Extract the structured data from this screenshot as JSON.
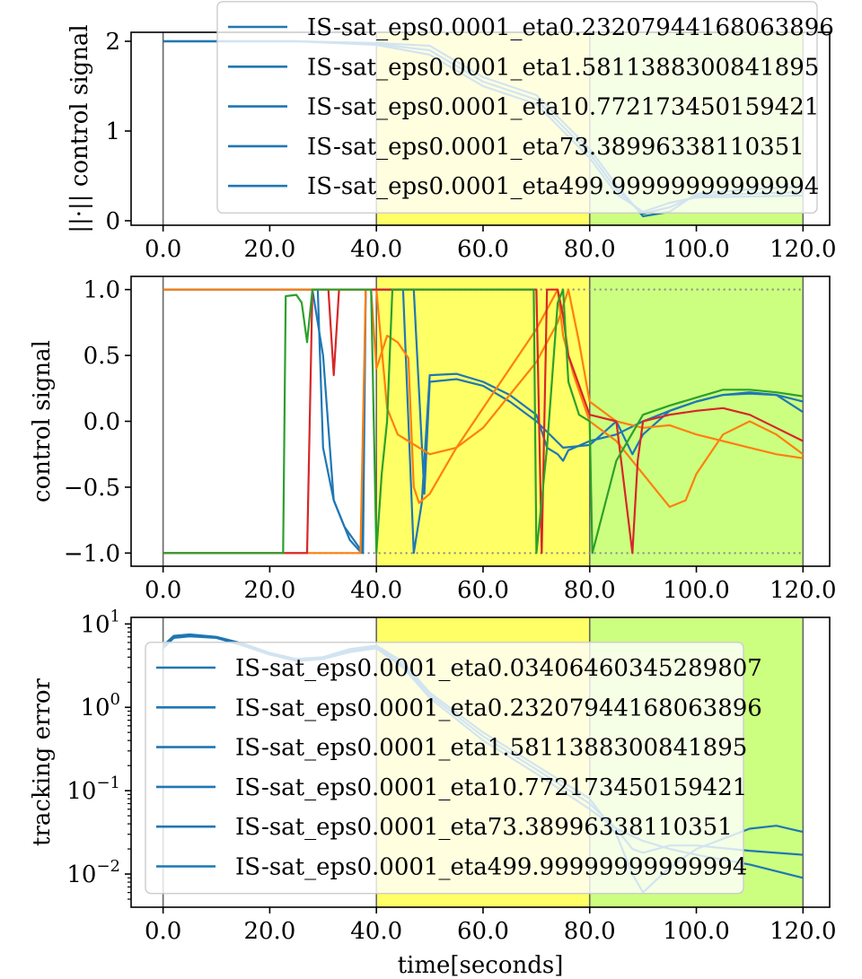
{
  "figure": {
    "xlabel": "time[seconds]",
    "colors": {
      "band1": "#ffff66",
      "band2": "#ccff80",
      "separator": "#666666",
      "blue": "#1f77b4",
      "orange": "#ff7f0e",
      "green": "#2ca02c",
      "red": "#d62728",
      "limit": "#888888"
    },
    "bands": [
      {
        "from": 40,
        "to": 80,
        "color": "#ffff66"
      },
      {
        "from": 80,
        "to": 120,
        "color": "#ccff80"
      }
    ],
    "separators": [
      0,
      40,
      80,
      120
    ]
  },
  "chart_data": [
    {
      "id": "norm",
      "type": "line",
      "ylabel": "||·|| control signal",
      "xlim": [
        -6,
        125
      ],
      "ylim": [
        -0.05,
        2.1
      ],
      "xticks": [
        0,
        20,
        40,
        60,
        80,
        100,
        120
      ],
      "xtick_labels": [
        "0.0",
        "20.0",
        "40.0",
        "60.0",
        "80.0",
        "100.0",
        "120.0"
      ],
      "yticks": [
        0,
        1,
        2
      ],
      "ytick_labels": [
        "0",
        "1",
        "2"
      ],
      "legend": {
        "placement": "upper-right",
        "entries": [
          "IS-sat_eps0.0001_eta0.23207944168063896",
          "IS-sat_eps0.0001_eta1.5811388300841895",
          "IS-sat_eps0.0001_eta10.772173450159421",
          "IS-sat_eps0.0001_eta73.38996338110351",
          "IS-sat_eps0.0001_eta499.99999999999994"
        ]
      },
      "series": [
        {
          "color": "#1f77b4",
          "x": [
            0,
            25,
            40,
            50,
            60,
            70,
            80,
            85,
            90,
            95,
            100,
            110,
            120
          ],
          "y": [
            2.0,
            2.0,
            1.98,
            1.95,
            1.6,
            1.4,
            0.8,
            0.4,
            0.05,
            0.1,
            0.3,
            0.35,
            0.38
          ]
        },
        {
          "color": "#1f77b4",
          "x": [
            0,
            25,
            40,
            50,
            60,
            70,
            80,
            85,
            90,
            95,
            100,
            110,
            120
          ],
          "y": [
            2.0,
            2.0,
            1.97,
            1.9,
            1.55,
            1.35,
            0.75,
            0.35,
            0.08,
            0.15,
            0.28,
            0.3,
            0.32
          ]
        },
        {
          "color": "#1f77b4",
          "x": [
            0,
            25,
            40,
            50,
            60,
            70,
            80,
            85,
            90,
            95,
            100,
            110,
            120
          ],
          "y": [
            2.0,
            2.0,
            1.96,
            1.85,
            1.5,
            1.3,
            0.7,
            0.3,
            0.1,
            0.2,
            0.26,
            0.27,
            0.28
          ]
        }
      ]
    },
    {
      "id": "control",
      "type": "line",
      "ylabel": "control signal",
      "xlim": [
        -6,
        125
      ],
      "ylim": [
        -1.1,
        1.1
      ],
      "xticks": [
        0,
        20,
        40,
        60,
        80,
        100,
        120
      ],
      "xtick_labels": [
        "0.0",
        "20.0",
        "40.0",
        "60.0",
        "80.0",
        "100.0",
        "120.0"
      ],
      "yticks": [
        1.0,
        0.5,
        0.0,
        -0.5,
        -1.0
      ],
      "ytick_labels": [
        "1.0",
        "0.5",
        "0.0",
        "−0.5",
        "−1.0"
      ],
      "limits": {
        "upper": 1.0,
        "lower": -1.0,
        "color": "#888888"
      },
      "series": [
        {
          "color": "#1f77b4",
          "x": [
            0,
            29,
            30,
            32,
            34,
            37.5,
            38,
            40,
            45,
            47,
            48.5,
            50,
            55,
            60,
            65,
            70,
            72,
            74,
            75,
            76,
            80,
            85,
            90,
            95,
            100,
            105,
            110,
            115,
            120
          ],
          "y": [
            1.0,
            1.0,
            -0.2,
            -0.6,
            -0.8,
            -1.0,
            1.0,
            1.0,
            1.0,
            -1.0,
            -0.62,
            0.35,
            0.36,
            0.3,
            0.2,
            0.05,
            -0.2,
            -0.25,
            -0.3,
            -0.22,
            -0.15,
            -0.1,
            0.0,
            0.08,
            0.15,
            0.2,
            0.22,
            0.2,
            0.07
          ]
        },
        {
          "color": "#1f77b4",
          "x": [
            0,
            28,
            30,
            32,
            35,
            37.2,
            38,
            40,
            47,
            49,
            50,
            55,
            60,
            65,
            70,
            75,
            80,
            85,
            88,
            90,
            95,
            100,
            105,
            110,
            115,
            120
          ],
          "y": [
            1.0,
            1.0,
            0.5,
            -0.6,
            -0.9,
            -1.0,
            1.0,
            1.0,
            1.0,
            -0.55,
            0.3,
            0.32,
            0.27,
            0.15,
            0.0,
            -0.2,
            -0.18,
            0.0,
            -0.25,
            -0.1,
            0.08,
            0.15,
            0.2,
            0.21,
            0.2,
            0.15
          ]
        },
        {
          "color": "#ff7f0e",
          "x": [
            0,
            37,
            38,
            39,
            40,
            42,
            44,
            46,
            47,
            48,
            50,
            55,
            60,
            65,
            70,
            74,
            75,
            76,
            77,
            80,
            85,
            90,
            95,
            98,
            100,
            105,
            110,
            115,
            120
          ],
          "y": [
            -1.0,
            -1.0,
            1.0,
            1.0,
            0.4,
            0.65,
            0.6,
            0.48,
            -0.5,
            -0.62,
            -0.55,
            -0.2,
            0.1,
            0.4,
            0.7,
            1.0,
            0.65,
            0.5,
            0.35,
            0.0,
            -0.15,
            -0.4,
            -0.65,
            -0.6,
            -0.4,
            -0.1,
            0.0,
            -0.1,
            -0.25
          ]
        },
        {
          "color": "#ff7f0e",
          "x": [
            0,
            40,
            42,
            44,
            46,
            48,
            50,
            55,
            60,
            65,
            70,
            72,
            74,
            76,
            78,
            80,
            85,
            90,
            95,
            100,
            105,
            110,
            115,
            120
          ],
          "y": [
            1.0,
            1.0,
            0.1,
            -0.1,
            -0.15,
            -0.2,
            -0.25,
            -0.2,
            -0.05,
            0.2,
            0.45,
            0.6,
            0.75,
            1.0,
            0.6,
            0.15,
            0.0,
            -0.05,
            -0.03,
            -0.1,
            -0.15,
            -0.2,
            -0.25,
            -0.28
          ]
        },
        {
          "color": "#d62728",
          "x": [
            0,
            27,
            28,
            31,
            32,
            33,
            34,
            36,
            37,
            40,
            70,
            71,
            72,
            74,
            75,
            76,
            80,
            85,
            88,
            89,
            90,
            95,
            100,
            105,
            110,
            115,
            120
          ],
          "y": [
            -1.0,
            -1.0,
            1.0,
            1.0,
            0.35,
            1.0,
            1.0,
            1.0,
            1.0,
            1.0,
            1.0,
            -1.0,
            1.0,
            1.0,
            0.8,
            0.5,
            0.05,
            0.0,
            -1.0,
            -0.3,
            0.0,
            0.05,
            0.08,
            0.1,
            0.05,
            -0.05,
            -0.15
          ]
        },
        {
          "color": "#2ca02c",
          "x": [
            0,
            22.5,
            23,
            25,
            26,
            27,
            28,
            39,
            40,
            41,
            42,
            43,
            45,
            60,
            69.5,
            70,
            72,
            74,
            75,
            76,
            78,
            80,
            80.5,
            85,
            90,
            95,
            100,
            105,
            110,
            115,
            120
          ],
          "y": [
            -1.0,
            -1.0,
            0.95,
            0.96,
            0.9,
            0.6,
            1.0,
            1.0,
            -1.0,
            -0.4,
            0.0,
            1.0,
            1.0,
            1.0,
            1.0,
            -1.0,
            -0.2,
            0.9,
            1.0,
            0.3,
            0.05,
            0.0,
            -1.0,
            -0.3,
            0.05,
            0.12,
            0.18,
            0.24,
            0.24,
            0.22,
            0.19
          ]
        }
      ]
    },
    {
      "id": "error",
      "type": "line",
      "ylabel": "tracking error",
      "xlim": [
        -6,
        125
      ],
      "yscale": "log",
      "ylim": [
        0.004,
        12
      ],
      "xticks": [
        0,
        20,
        40,
        60,
        80,
        100,
        120
      ],
      "xtick_labels": [
        "0.0",
        "20.0",
        "40.0",
        "60.0",
        "80.0",
        "100.0",
        "120.0"
      ],
      "yticks": [
        10,
        1,
        0.1,
        0.01
      ],
      "ytick_labels": [
        {
          "base": "10",
          "exp": "1"
        },
        {
          "base": "10",
          "exp": "0"
        },
        {
          "base": "10",
          "exp": "−1"
        },
        {
          "base": "10",
          "exp": "−2"
        }
      ],
      "legend": {
        "placement": "center-left",
        "entries": [
          "IS-sat_eps0.0001_eta0.03406460345289807",
          "IS-sat_eps0.0001_eta0.23207944168063896",
          "IS-sat_eps0.0001_eta1.5811388300841895",
          "IS-sat_eps0.0001_eta10.772173450159421",
          "IS-sat_eps0.0001_eta73.38996338110351",
          "IS-sat_eps0.0001_eta499.99999999999994"
        ]
      },
      "series": [
        {
          "color": "#1f77b4",
          "x": [
            0,
            2,
            5,
            10,
            15,
            20,
            25,
            30,
            35,
            40,
            45,
            50,
            60,
            70,
            80,
            85,
            88,
            90,
            95,
            100,
            110,
            115,
            120
          ],
          "y": [
            5.5,
            7.2,
            7.5,
            7.0,
            5.8,
            4.5,
            3.8,
            4.0,
            5.0,
            5.5,
            3.5,
            1.5,
            0.5,
            0.2,
            0.08,
            0.03,
            0.01,
            0.006,
            0.012,
            0.02,
            0.035,
            0.038,
            0.032
          ]
        },
        {
          "color": "#1f77b4",
          "x": [
            0,
            2,
            5,
            10,
            15,
            20,
            25,
            30,
            35,
            40,
            45,
            50,
            60,
            70,
            80,
            85,
            88,
            90,
            95,
            100,
            110,
            120
          ],
          "y": [
            5.3,
            7.0,
            7.3,
            6.9,
            5.6,
            4.4,
            3.7,
            3.9,
            4.8,
            5.3,
            3.2,
            1.4,
            0.45,
            0.18,
            0.07,
            0.035,
            0.02,
            0.018,
            0.022,
            0.022,
            0.019,
            0.017
          ]
        },
        {
          "color": "#1f77b4",
          "x": [
            0,
            2,
            5,
            10,
            15,
            20,
            25,
            30,
            35,
            40,
            45,
            50,
            60,
            70,
            80,
            85,
            90,
            95,
            100,
            110,
            120
          ],
          "y": [
            5.1,
            6.8,
            7.1,
            6.8,
            5.5,
            4.3,
            3.6,
            3.8,
            4.6,
            5.1,
            3.0,
            1.3,
            0.4,
            0.16,
            0.06,
            0.035,
            0.025,
            0.02,
            0.017,
            0.013,
            0.009
          ]
        }
      ]
    }
  ]
}
